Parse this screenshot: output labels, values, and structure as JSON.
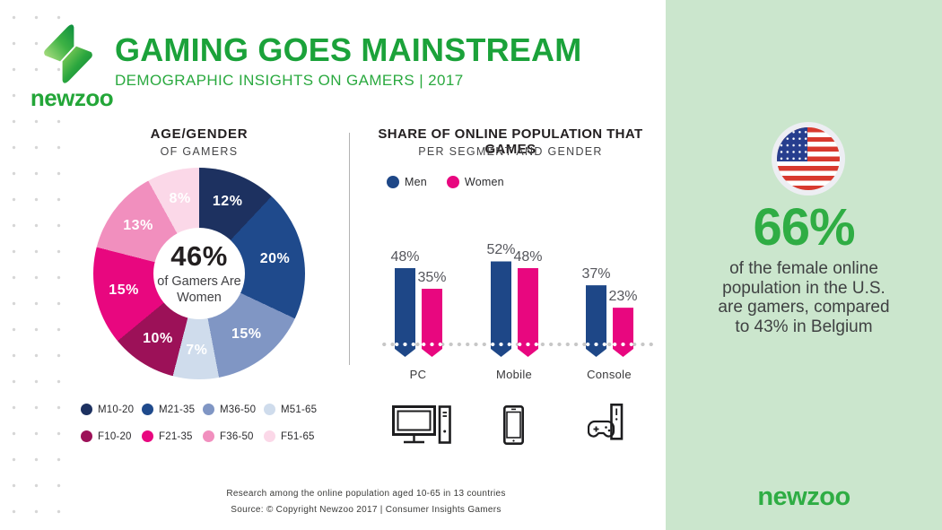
{
  "header": {
    "logo_wordmark": "newzoo",
    "title": "GAMING GOES MAINSTREAM",
    "subtitle": "DEMOGRAPHIC INSIGHTS ON GAMERS | 2017"
  },
  "chart_data": [
    {
      "type": "pie",
      "variant": "donut",
      "title": "AGE/GENDER",
      "subtitle": "OF GAMERS",
      "center": {
        "value": "46%",
        "label": "of Gamers Are\nWomen"
      },
      "start_angle_deg": 0,
      "direction": "clockwise",
      "segments": [
        {
          "label": "M10-20",
          "value": 12,
          "color": "#1d3160"
        },
        {
          "label": "M21-35",
          "value": 20,
          "color": "#1f4a8c"
        },
        {
          "label": "M36-50",
          "value": 15,
          "color": "#8096c4"
        },
        {
          "label": "M51-65",
          "value": 7,
          "color": "#cfdcec"
        },
        {
          "label": "F10-20",
          "value": 10,
          "color": "#9c1158"
        },
        {
          "label": "F21-35",
          "value": 15,
          "color": "#e8077f"
        },
        {
          "label": "F36-50",
          "value": 13,
          "color": "#f18fbe"
        },
        {
          "label": "F51-65",
          "value": 8,
          "color": "#fbd8e8"
        }
      ],
      "legend_position": "bottom"
    },
    {
      "type": "bar",
      "title": "SHARE OF ONLINE POPULATION THAT GAMES",
      "subtitle": "PER SEGMENT AND GENDER",
      "categories": [
        "PC",
        "Mobile",
        "Console"
      ],
      "series": [
        {
          "name": "Men",
          "color": "#1e4787",
          "values": [
            48,
            52,
            37
          ]
        },
        {
          "name": "Women",
          "color": "#e8077f",
          "values": [
            35,
            48,
            23
          ]
        }
      ],
      "value_suffix": "%",
      "baseline_style": "dotted",
      "ylim": [
        0,
        60
      ],
      "legend_position": "top-left"
    }
  ],
  "highlight_panel": {
    "flag_icon": "us-flag",
    "stat_value": "66%",
    "stat_text": "of the female online\npopulation in the U.S.\nare gamers, compared\nto 43% in Belgium",
    "brand_wordmark": "newzoo",
    "background": "#cbe6cd",
    "accent_green": "#2fad44"
  },
  "footer": {
    "line1": "Research among the online population aged 10-65 in 13 countries",
    "line2": "Source: © Copyright Newzoo 2017 | Consumer Insights Gamers"
  },
  "icons": {
    "devices": [
      "pc-icon",
      "mobile-icon",
      "console-icon"
    ]
  }
}
